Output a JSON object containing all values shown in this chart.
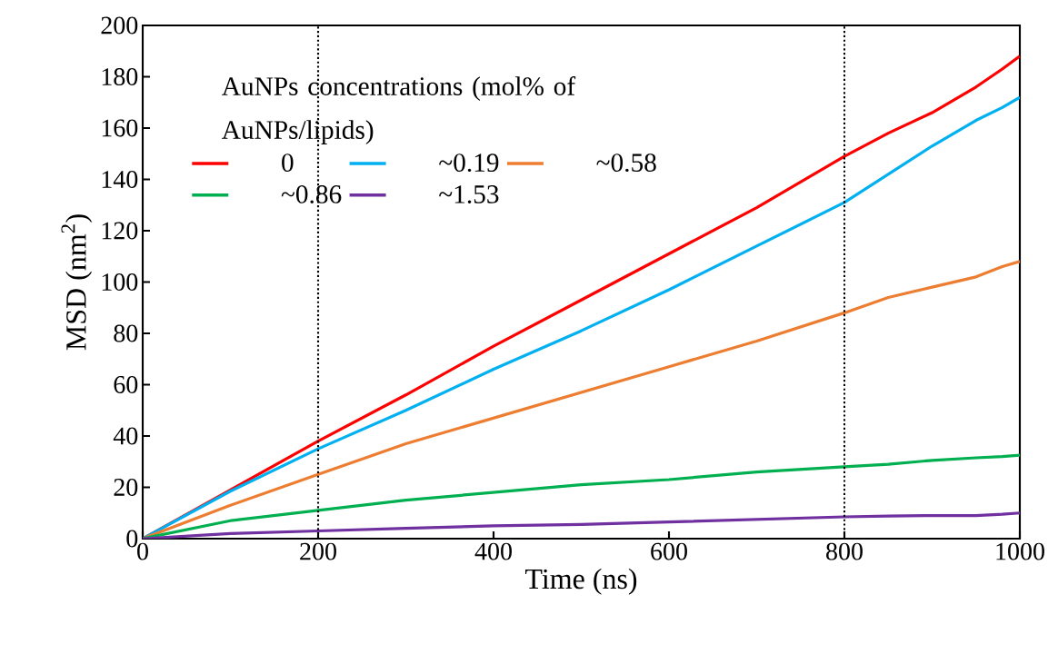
{
  "chart_data": {
    "type": "line",
    "xlabel": "Time (ns)",
    "ylabel": "MSD (nm$^{2}$)",
    "legend_title": "AuNPs concentrations (mol% of AuNPs/lipids)",
    "xlim": [
      0,
      1000
    ],
    "ylim": [
      0,
      200
    ],
    "xticks": [
      0,
      200,
      400,
      600,
      800,
      1000
    ],
    "yticks": [
      0,
      20,
      40,
      60,
      80,
      100,
      120,
      140,
      160,
      180,
      200
    ],
    "legend": "top left",
    "grid": false,
    "marker": "none",
    "x": [
      0,
      100,
      200,
      300,
      400,
      500,
      600,
      700,
      800,
      850,
      900,
      950,
      980,
      1000
    ],
    "series": [
      {
        "name": "0",
        "color": "#ff0000",
        "values": [
          0,
          19,
          38,
          56,
          75,
          93,
          111,
          129,
          149,
          158,
          166,
          176,
          183,
          188
        ]
      },
      {
        "name": "~0.19",
        "color": "#00b0f0",
        "values": [
          0,
          18.5,
          35,
          50,
          66,
          81,
          97,
          114,
          131,
          142,
          153,
          163,
          168,
          172
        ]
      },
      {
        "name": "~0.58",
        "color": "#ed7d31",
        "values": [
          0,
          13,
          25,
          37,
          47,
          57,
          67,
          77,
          88,
          94,
          98,
          102,
          106,
          108
        ]
      },
      {
        "name": "~0.86",
        "color": "#00b050",
        "values": [
          0,
          7,
          11,
          15,
          18,
          21,
          23,
          26,
          28,
          29,
          30.5,
          31.5,
          32,
          32.5
        ]
      },
      {
        "name": "~1.53",
        "color": "#7030a0",
        "values": [
          0,
          2,
          3,
          4,
          5,
          5.5,
          6.5,
          7.5,
          8.5,
          8.8,
          9,
          9,
          9.5,
          10
        ]
      }
    ],
    "ref_lines": [
      {
        "axis": "x",
        "value": 200,
        "color": "#000000",
        "line_style": "dotted"
      },
      {
        "axis": "x",
        "value": 800,
        "color": "#000000",
        "line_style": "dotted"
      }
    ]
  }
}
